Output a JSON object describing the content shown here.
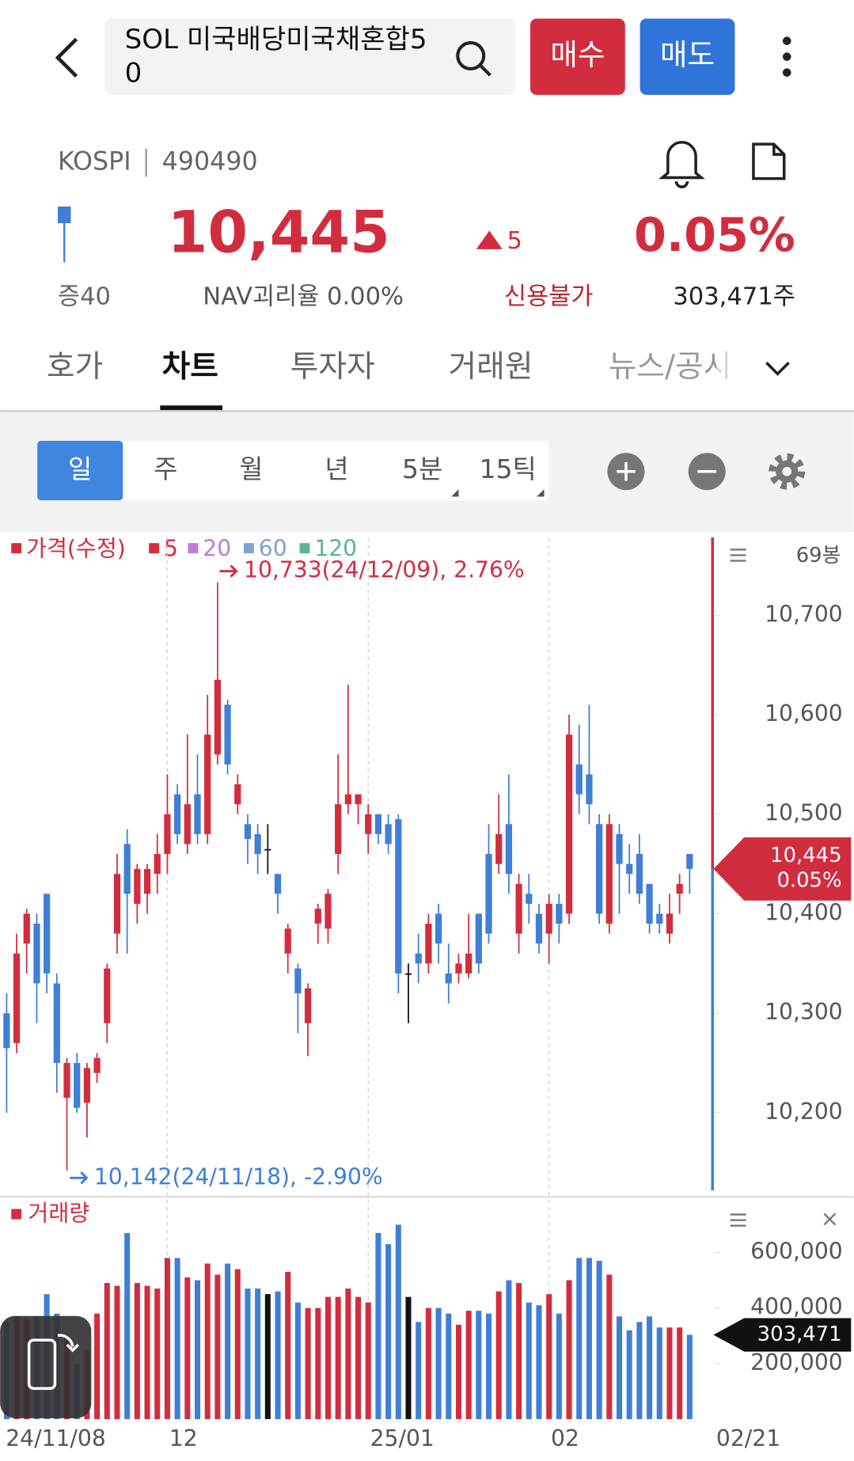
{
  "header": {
    "title_lines": [
      "SOL 미국배당미국채혼합5",
      "0"
    ],
    "buy": "매수",
    "sell": "매도"
  },
  "quote": {
    "market": "KOSPI",
    "code": "490490",
    "price": {
      "value": 10445,
      "label": "10,445"
    },
    "change": 5,
    "change_pct": {
      "value": 0.05,
      "label": "0.05%"
    },
    "margin": "증40",
    "nav": "NAV괴리율 0.00%",
    "credit": "신용불가",
    "volume": {
      "value": 303471,
      "label": "303,471주"
    }
  },
  "tabs": [
    "호가",
    "차트",
    "투자자",
    "거래원",
    "뉴스/공시"
  ],
  "periods": [
    "일",
    "주",
    "월",
    "년",
    "5분",
    "15틱"
  ],
  "chart_data": {
    "type": "candlestick",
    "legend": [
      {
        "name": "가격(수정)",
        "color": "#d22d3f"
      },
      {
        "name": "5",
        "color": "#d22d3f"
      },
      {
        "name": "20",
        "color": "#c07ad8"
      },
      {
        "name": "60",
        "color": "#7fa2d2"
      },
      {
        "name": "120",
        "color": "#5ab596"
      }
    ],
    "high_note": "10,733(24/12/09), 2.76%",
    "low_note": "10,142(24/11/18), -2.90%",
    "count_label": "69봉",
    "price_tag": "10,445",
    "pct_tag": "0.05%",
    "up_color": "#d22d3f",
    "down_color": "#3f7fd6",
    "flat_color": "#111111",
    "ylim": [
      10122,
      10778
    ],
    "yticks": [
      {
        "value": 10200,
        "label": "10,200"
      },
      {
        "value": 10300,
        "label": "10,300"
      },
      {
        "value": 10400,
        "label": "10,400"
      },
      {
        "value": 10500,
        "label": "10,500"
      },
      {
        "value": 10600,
        "label": "10,600"
      },
      {
        "value": 10700,
        "label": "10,700"
      }
    ],
    "xticks": [
      {
        "value": 0,
        "label": "24/11/08"
      },
      {
        "value": 16,
        "label": "12"
      },
      {
        "value": 36,
        "label": "25/01"
      },
      {
        "value": 54,
        "label": "02"
      }
    ],
    "last_date": "02/21",
    "open": [
      10300,
      10270,
      10370,
      10390,
      10420,
      10330,
      10215,
      10250,
      10210,
      10240,
      10290,
      10380,
      10470,
      10410,
      10420,
      10440,
      10460,
      10520,
      10470,
      10520,
      10480,
      10560,
      10610,
      10510,
      10490,
      10480,
      10465,
      10440,
      10360,
      10345,
      10290,
      10390,
      10385,
      10460,
      10510,
      10510,
      10480,
      10500,
      10490,
      10495,
      10340,
      10360,
      10350,
      10400,
      10340,
      10340,
      10340,
      10400,
      10460,
      10450,
      10490,
      10380,
      10420,
      10400,
      10380,
      10410,
      10400,
      10550,
      10540,
      10490,
      10390,
      10480,
      10450,
      10460,
      10430,
      10400,
      10380,
      10420,
      10460
    ],
    "high": [
      10320,
      10380,
      10405,
      10400,
      10420,
      10340,
      10255,
      10260,
      10250,
      10260,
      10350,
      10460,
      10485,
      10450,
      10450,
      10480,
      10540,
      10530,
      10580,
      10560,
      10620,
      10733,
      10615,
      10540,
      10500,
      10490,
      10490,
      10440,
      10390,
      10350,
      10330,
      10410,
      10425,
      10560,
      10630,
      10520,
      10510,
      10500,
      10500,
      10500,
      10350,
      10380,
      10400,
      10410,
      10370,
      10360,
      10400,
      10400,
      10490,
      10520,
      10540,
      10440,
      10440,
      10410,
      10420,
      10420,
      10600,
      10590,
      10610,
      10500,
      10500,
      10490,
      10470,
      10480,
      10430,
      10410,
      10420,
      10440,
      10460
    ],
    "low": [
      10200,
      10260,
      10340,
      10290,
      10320,
      10220,
      10142,
      10200,
      10175,
      10230,
      10270,
      10360,
      10360,
      10390,
      10400,
      10420,
      10440,
      10470,
      10460,
      10470,
      10470,
      10550,
      10540,
      10500,
      10450,
      10440,
      10440,
      10400,
      10340,
      10280,
      10257,
      10370,
      10370,
      10440,
      10500,
      10490,
      10460,
      10470,
      10460,
      10320,
      10290,
      10330,
      10340,
      10350,
      10310,
      10330,
      10335,
      10340,
      10370,
      10440,
      10420,
      10360,
      10390,
      10360,
      10350,
      10370,
      10390,
      10500,
      10490,
      10390,
      10380,
      10400,
      10420,
      10410,
      10380,
      10380,
      10370,
      10400,
      10420
    ],
    "close": [
      10265,
      10360,
      10400,
      10330,
      10340,
      10250,
      10250,
      10205,
      10245,
      10255,
      10345,
      10440,
      10420,
      10445,
      10445,
      10460,
      10500,
      10480,
      10510,
      10480,
      10580,
      10635,
      10550,
      10530,
      10475,
      10460,
      10465,
      10420,
      10385,
      10320,
      10325,
      10405,
      10420,
      10510,
      10520,
      10520,
      10500,
      10480,
      10470,
      10340,
      10340,
      10350,
      10390,
      10370,
      10330,
      10350,
      10360,
      10350,
      10380,
      10480,
      10440,
      10430,
      10410,
      10370,
      10410,
      10390,
      10580,
      10520,
      10510,
      10400,
      10490,
      10450,
      10440,
      10420,
      10390,
      10390,
      10400,
      10430,
      10445
    ],
    "volume": {
      "name": "거래량",
      "ylim": [
        0,
        790000
      ],
      "yticks": [
        {
          "value": 200000,
          "label": "200,000"
        },
        {
          "value": 400000,
          "label": "400,000"
        },
        {
          "value": 600000,
          "label": "600,000"
        }
      ],
      "tag": "303,471",
      "values": [
        350000,
        370000,
        360000,
        370000,
        450000,
        380000,
        300000,
        200000,
        250000,
        380000,
        490000,
        480000,
        670000,
        490000,
        480000,
        470000,
        580000,
        580000,
        510000,
        500000,
        560000,
        520000,
        560000,
        540000,
        470000,
        470000,
        450000,
        460000,
        530000,
        420000,
        400000,
        400000,
        440000,
        440000,
        470000,
        440000,
        420000,
        670000,
        630000,
        700000,
        440000,
        350000,
        400000,
        400000,
        380000,
        340000,
        390000,
        390000,
        380000,
        460000,
        500000,
        490000,
        420000,
        410000,
        450000,
        380000,
        500000,
        580000,
        580000,
        570000,
        520000,
        370000,
        320000,
        350000,
        370000,
        330000,
        330000,
        330000,
        303471
      ]
    }
  }
}
